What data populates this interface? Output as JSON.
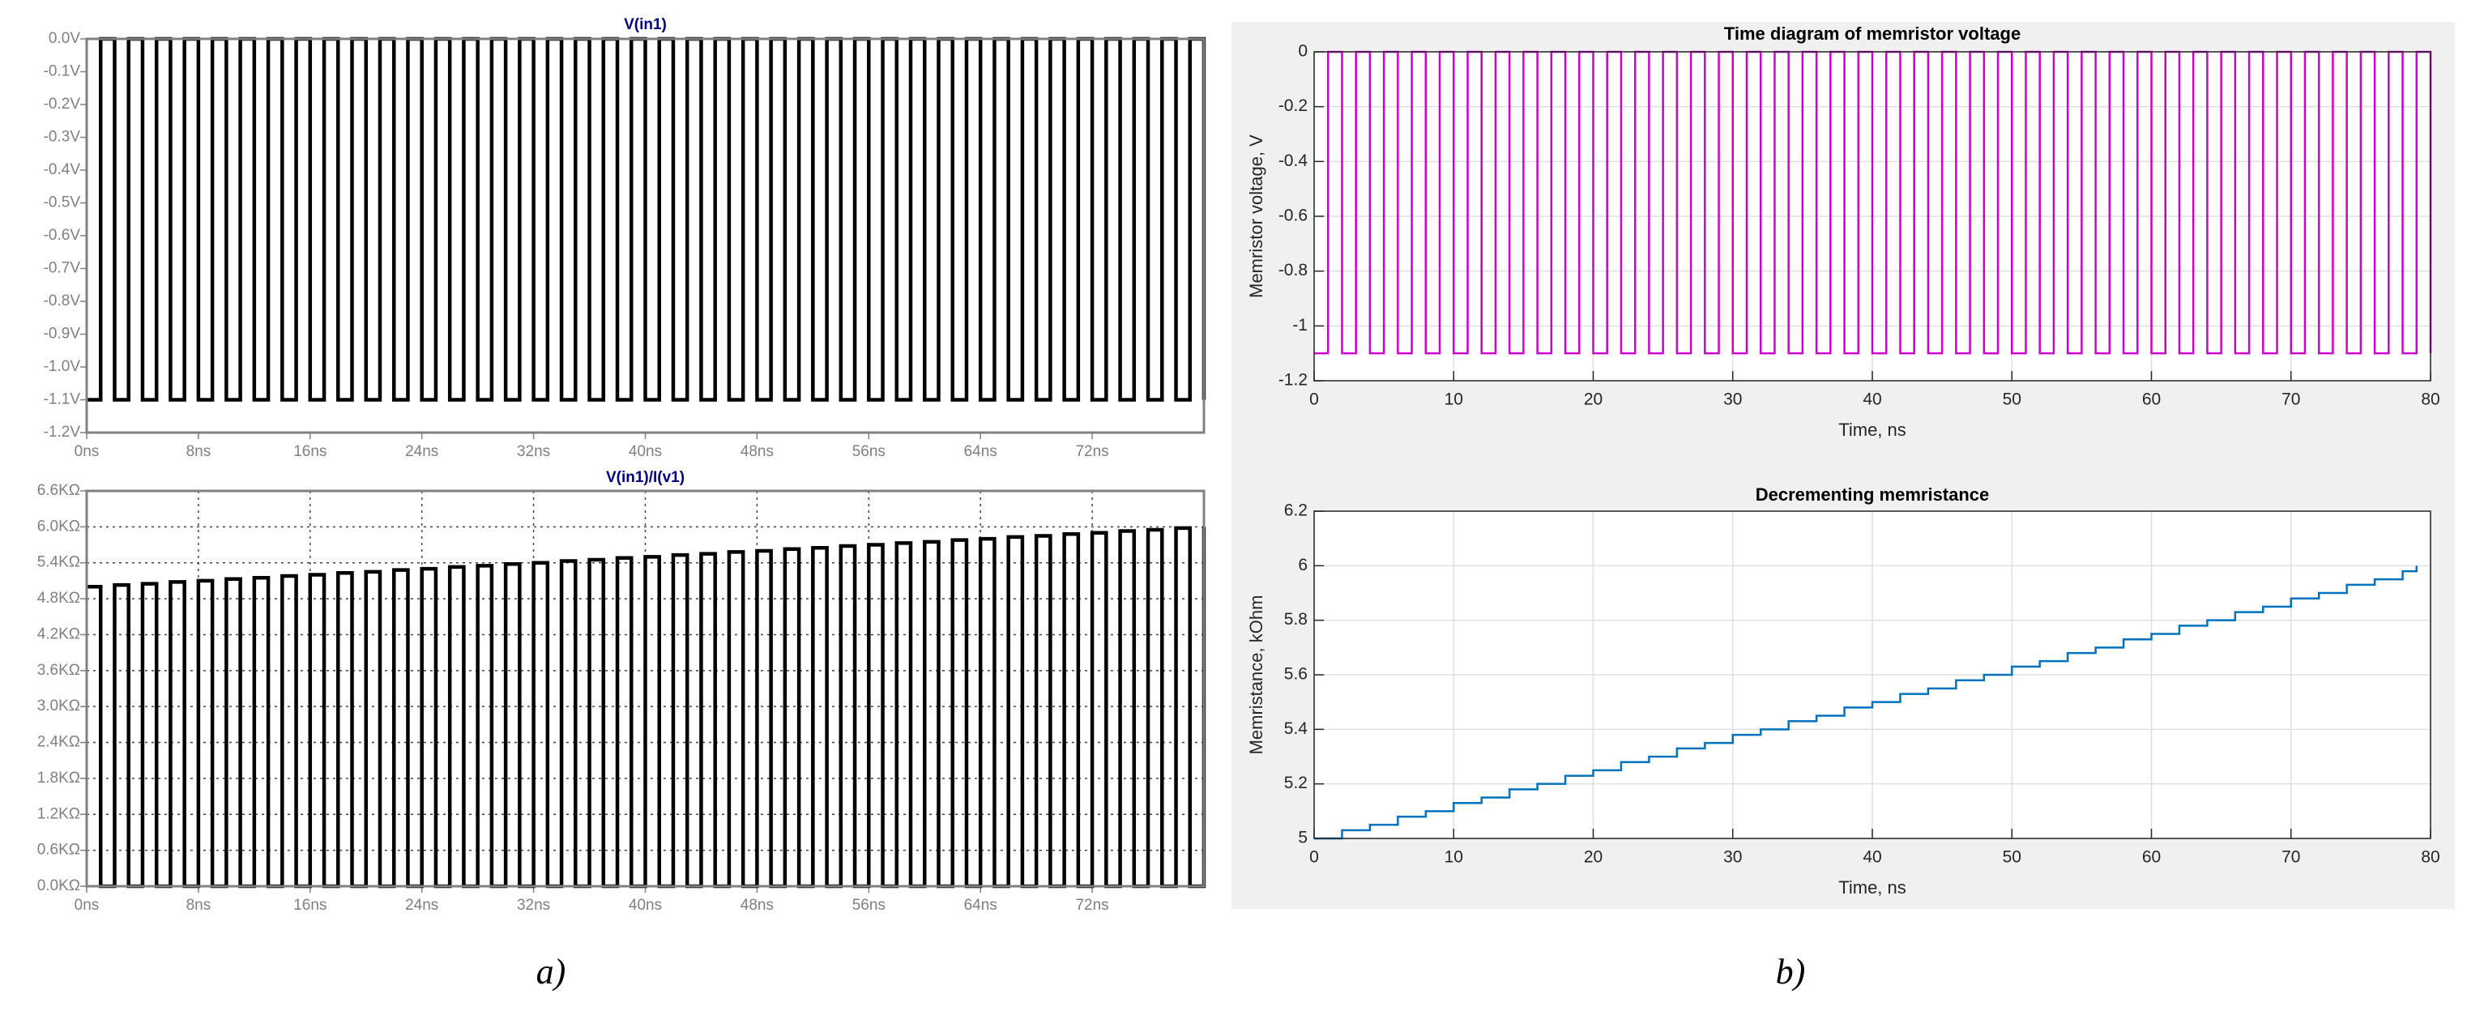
{
  "chart_data": [
    {
      "type": "line",
      "title": "V(in1)",
      "step": true,
      "grid": false,
      "color": "#000000",
      "x": [
        0,
        1,
        2,
        3,
        4,
        5,
        6,
        7,
        8,
        9,
        10,
        11,
        12,
        13,
        14,
        15,
        16,
        17,
        18,
        19,
        20,
        21,
        22,
        23,
        24,
        25,
        26,
        27,
        28,
        29,
        30,
        31,
        32,
        33,
        34,
        35,
        36,
        37,
        38,
        39,
        40,
        41,
        42,
        43,
        44,
        45,
        46,
        47,
        48,
        49,
        50,
        51,
        52,
        53,
        54,
        55,
        56,
        57,
        58,
        59,
        60,
        61,
        62,
        63,
        64,
        65,
        66,
        67,
        68,
        69,
        70,
        71,
        72,
        73,
        74,
        75,
        76,
        77,
        78,
        79,
        80
      ],
      "values": [
        -1.1,
        0,
        -1.1,
        0,
        -1.1,
        0,
        -1.1,
        0,
        -1.1,
        0,
        -1.1,
        0,
        -1.1,
        0,
        -1.1,
        0,
        -1.1,
        0,
        -1.1,
        0,
        -1.1,
        0,
        -1.1,
        0,
        -1.1,
        0,
        -1.1,
        0,
        -1.1,
        0,
        -1.1,
        0,
        -1.1,
        0,
        -1.1,
        0,
        -1.1,
        0,
        -1.1,
        0,
        -1.1,
        0,
        -1.1,
        0,
        -1.1,
        0,
        -1.1,
        0,
        -1.1,
        0,
        -1.1,
        0,
        -1.1,
        0,
        -1.1,
        0,
        -1.1,
        0,
        -1.1,
        0,
        -1.1,
        0,
        -1.1,
        0,
        -1.1,
        0,
        -1.1,
        0,
        -1.1,
        0,
        -1.1,
        0,
        -1.1,
        0,
        -1.1,
        0,
        -1.1,
        0,
        -1.1,
        0,
        -1.1
      ],
      "xlim": [
        0,
        80
      ],
      "xticks": [
        {
          "value": 0,
          "label": "0ns"
        },
        {
          "value": 8,
          "label": "8ns"
        },
        {
          "value": 16,
          "label": "16ns"
        },
        {
          "value": 24,
          "label": "24ns"
        },
        {
          "value": 32,
          "label": "32ns"
        },
        {
          "value": 40,
          "label": "40ns"
        },
        {
          "value": 48,
          "label": "48ns"
        },
        {
          "value": 56,
          "label": "56ns"
        },
        {
          "value": 64,
          "label": "64ns"
        },
        {
          "value": 72,
          "label": "72ns"
        }
      ],
      "ylim": [
        -1.2,
        0
      ],
      "yticks": [
        {
          "value": 0,
          "label": "0.0V"
        },
        {
          "value": -0.1,
          "label": "-0.1V"
        },
        {
          "value": -0.2,
          "label": "-0.2V"
        },
        {
          "value": -0.3,
          "label": "-0.3V"
        },
        {
          "value": -0.4,
          "label": "-0.4V"
        },
        {
          "value": -0.5,
          "label": "-0.5V"
        },
        {
          "value": -0.6,
          "label": "-0.6V"
        },
        {
          "value": -0.7,
          "label": "-0.7V"
        },
        {
          "value": -0.8,
          "label": "-0.8V"
        },
        {
          "value": -0.9,
          "label": "-0.9V"
        },
        {
          "value": -1.0,
          "label": "-1.0V"
        },
        {
          "value": -1.1,
          "label": "-1.1V"
        },
        {
          "value": -1.2,
          "label": "-1.2V"
        }
      ]
    },
    {
      "type": "line",
      "title": "V(in1)/I(v1)",
      "step": true,
      "grid": true,
      "color": "#000000",
      "x": [
        0,
        1,
        2,
        3,
        4,
        5,
        6,
        7,
        8,
        9,
        10,
        11,
        12,
        13,
        14,
        15,
        16,
        17,
        18,
        19,
        20,
        21,
        22,
        23,
        24,
        25,
        26,
        27,
        28,
        29,
        30,
        31,
        32,
        33,
        34,
        35,
        36,
        37,
        38,
        39,
        40,
        41,
        42,
        43,
        44,
        45,
        46,
        47,
        48,
        49,
        50,
        51,
        52,
        53,
        54,
        55,
        56,
        57,
        58,
        59,
        60,
        61,
        62,
        63,
        64,
        65,
        66,
        67,
        68,
        69,
        70,
        71,
        72,
        73,
        74,
        75,
        76,
        77,
        78,
        79,
        80
      ],
      "values": [
        5.0,
        0,
        5.03,
        0,
        5.05,
        0,
        5.08,
        0,
        5.1,
        0,
        5.13,
        0,
        5.15,
        0,
        5.18,
        0,
        5.2,
        0,
        5.23,
        0,
        5.25,
        0,
        5.28,
        0,
        5.3,
        0,
        5.33,
        0,
        5.35,
        0,
        5.38,
        0,
        5.4,
        0,
        5.43,
        0,
        5.45,
        0,
        5.48,
        0,
        5.5,
        0,
        5.53,
        0,
        5.55,
        0,
        5.58,
        0,
        5.6,
        0,
        5.63,
        0,
        5.65,
        0,
        5.68,
        0,
        5.7,
        0,
        5.73,
        0,
        5.75,
        0,
        5.78,
        0,
        5.8,
        0,
        5.83,
        0,
        5.85,
        0,
        5.88,
        0,
        5.9,
        0,
        5.93,
        0,
        5.95,
        0,
        5.98,
        0,
        6.0
      ],
      "xlim": [
        0,
        80
      ],
      "xticks": [
        {
          "value": 0,
          "label": "0ns"
        },
        {
          "value": 8,
          "label": "8ns"
        },
        {
          "value": 16,
          "label": "16ns"
        },
        {
          "value": 24,
          "label": "24ns"
        },
        {
          "value": 32,
          "label": "32ns"
        },
        {
          "value": 40,
          "label": "40ns"
        },
        {
          "value": 48,
          "label": "48ns"
        },
        {
          "value": 56,
          "label": "56ns"
        },
        {
          "value": 64,
          "label": "64ns"
        },
        {
          "value": 72,
          "label": "72ns"
        }
      ],
      "ylim": [
        0,
        6.6
      ],
      "yticks": [
        {
          "value": 0,
          "label": "0.0KΩ"
        },
        {
          "value": 0.6,
          "label": "0.6KΩ"
        },
        {
          "value": 1.2,
          "label": "1.2KΩ"
        },
        {
          "value": 1.8,
          "label": "1.8KΩ"
        },
        {
          "value": 2.4,
          "label": "2.4KΩ"
        },
        {
          "value": 3.0,
          "label": "3.0KΩ"
        },
        {
          "value": 3.6,
          "label": "3.6KΩ"
        },
        {
          "value": 4.2,
          "label": "4.2KΩ"
        },
        {
          "value": 4.8,
          "label": "4.8KΩ"
        },
        {
          "value": 5.4,
          "label": "5.4KΩ"
        },
        {
          "value": 6.0,
          "label": "6.0KΩ"
        },
        {
          "value": 6.6,
          "label": "6.6KΩ"
        }
      ]
    },
    {
      "type": "line",
      "title": "Time diagram of memristor voltage",
      "xlabel": "Time, ns",
      "ylabel": "Memristor voltage, V",
      "step": true,
      "grid": true,
      "color": "#cc00cc",
      "x": [
        0,
        1,
        2,
        3,
        4,
        5,
        6,
        7,
        8,
        9,
        10,
        11,
        12,
        13,
        14,
        15,
        16,
        17,
        18,
        19,
        20,
        21,
        22,
        23,
        24,
        25,
        26,
        27,
        28,
        29,
        30,
        31,
        32,
        33,
        34,
        35,
        36,
        37,
        38,
        39,
        40,
        41,
        42,
        43,
        44,
        45,
        46,
        47,
        48,
        49,
        50,
        51,
        52,
        53,
        54,
        55,
        56,
        57,
        58,
        59,
        60,
        61,
        62,
        63,
        64,
        65,
        66,
        67,
        68,
        69,
        70,
        71,
        72,
        73,
        74,
        75,
        76,
        77,
        78,
        79,
        80
      ],
      "values": [
        -1.1,
        0,
        -1.1,
        0,
        -1.1,
        0,
        -1.1,
        0,
        -1.1,
        0,
        -1.1,
        0,
        -1.1,
        0,
        -1.1,
        0,
        -1.1,
        0,
        -1.1,
        0,
        -1.1,
        0,
        -1.1,
        0,
        -1.1,
        0,
        -1.1,
        0,
        -1.1,
        0,
        -1.1,
        0,
        -1.1,
        0,
        -1.1,
        0,
        -1.1,
        0,
        -1.1,
        0,
        -1.1,
        0,
        -1.1,
        0,
        -1.1,
        0,
        -1.1,
        0,
        -1.1,
        0,
        -1.1,
        0,
        -1.1,
        0,
        -1.1,
        0,
        -1.1,
        0,
        -1.1,
        0,
        -1.1,
        0,
        -1.1,
        0,
        -1.1,
        0,
        -1.1,
        0,
        -1.1,
        0,
        -1.1,
        0,
        -1.1,
        0,
        -1.1,
        0,
        -1.1,
        0,
        -1.1,
        0,
        -1.1
      ],
      "xlim": [
        0,
        80
      ],
      "xticks": [
        0,
        10,
        20,
        30,
        40,
        50,
        60,
        70,
        80
      ],
      "ylim": [
        -1.2,
        0
      ],
      "yticks": [
        0,
        -0.2,
        -0.4,
        -0.6,
        -0.8,
        -1,
        -1.2
      ]
    },
    {
      "type": "line",
      "title": "Decrementing memristance",
      "xlabel": "Time, ns",
      "ylabel": "Memristance, kOhm",
      "step": true,
      "grid": true,
      "color": "#0072bd",
      "x": [
        0,
        2,
        4,
        6,
        8,
        10,
        12,
        14,
        16,
        18,
        20,
        22,
        24,
        26,
        28,
        30,
        32,
        34,
        36,
        38,
        40,
        42,
        44,
        46,
        48,
        50,
        52,
        54,
        56,
        58,
        60,
        62,
        64,
        66,
        68,
        70,
        72,
        74,
        76,
        78,
        79
      ],
      "values": [
        5.0,
        5.03,
        5.05,
        5.08,
        5.1,
        5.13,
        5.15,
        5.18,
        5.2,
        5.23,
        5.25,
        5.28,
        5.3,
        5.33,
        5.35,
        5.38,
        5.4,
        5.43,
        5.45,
        5.48,
        5.5,
        5.53,
        5.55,
        5.58,
        5.6,
        5.63,
        5.65,
        5.68,
        5.7,
        5.73,
        5.75,
        5.78,
        5.8,
        5.83,
        5.85,
        5.88,
        5.9,
        5.93,
        5.95,
        5.98,
        6.0
      ],
      "xlim": [
        0,
        80
      ],
      "xticks": [
        0,
        10,
        20,
        30,
        40,
        50,
        60,
        70,
        80
      ],
      "ylim": [
        5,
        6.2
      ],
      "yticks": [
        5,
        5.2,
        5.4,
        5.6,
        5.8,
        6,
        6.2
      ]
    }
  ],
  "panel_labels": [
    "a)",
    "b)"
  ]
}
